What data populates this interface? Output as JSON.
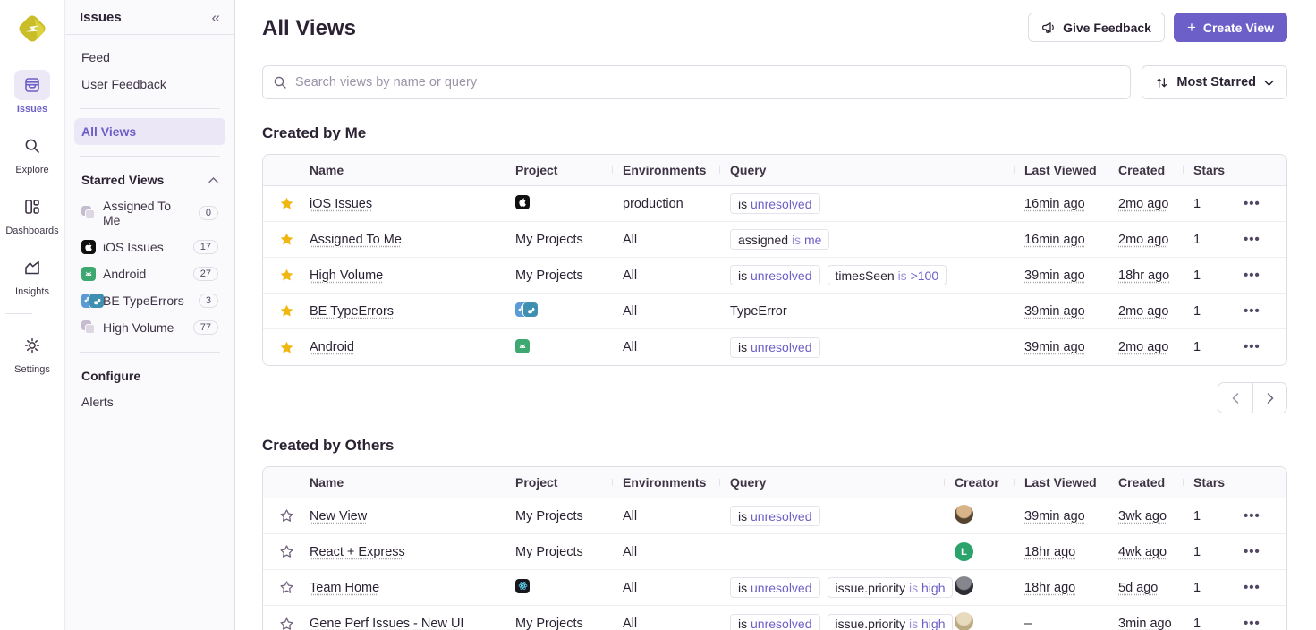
{
  "colors": {
    "accent": "#6C5FC7",
    "star_gold": "#F0B712",
    "border": "#E0DCE5",
    "text_dark": "#2B2233"
  },
  "rail": {
    "items": [
      {
        "label": "Issues",
        "icon": "issues",
        "active": true
      },
      {
        "label": "Explore",
        "icon": "explore",
        "active": false
      },
      {
        "label": "Dashboards",
        "icon": "dashboards",
        "active": false
      },
      {
        "label": "Insights",
        "icon": "insights",
        "active": false
      },
      {
        "label": "Settings",
        "icon": "settings",
        "active": false,
        "divider_before": true
      }
    ]
  },
  "sidebar": {
    "title": "Issues",
    "collapse_glyph": "«",
    "nav_items": [
      {
        "label": "Feed"
      },
      {
        "label": "User Feedback"
      }
    ],
    "all_views_label": "All Views",
    "starred_header": "Starred Views",
    "starred_items": [
      {
        "label": "Assigned To Me",
        "count": "0",
        "icon": "stack"
      },
      {
        "label": "iOS Issues",
        "count": "17",
        "icon": "apple"
      },
      {
        "label": "Android",
        "count": "27",
        "icon": "android"
      },
      {
        "label": "BE TypeErrors",
        "count": "3",
        "icon": "python-pair"
      },
      {
        "label": "High Volume",
        "count": "77",
        "icon": "stack"
      }
    ],
    "configure_header": "Configure",
    "configure_items": [
      {
        "label": "Alerts"
      }
    ]
  },
  "header": {
    "title": "All Views",
    "give_feedback_label": "Give Feedback",
    "create_view_label": "Create View",
    "create_view_plus": "+"
  },
  "toolbar": {
    "search_placeholder": "Search views by name or query",
    "sort_label": "Most Starred"
  },
  "created_by_me": {
    "heading": "Created by Me",
    "columns": [
      "Name",
      "Project",
      "Environments",
      "Query",
      "Last Viewed",
      "Created",
      "Stars"
    ],
    "rows": [
      {
        "starred": true,
        "name": "iOS Issues",
        "project": {
          "icons": [
            "apple"
          ]
        },
        "environments": "production",
        "query": [
          {
            "tokens": [
              {
                "t": "is",
                "c": "d"
              },
              {
                "t": "unresolved",
                "c": "p"
              }
            ]
          }
        ],
        "last_viewed": "16min ago",
        "created": "2mo ago",
        "stars": "1"
      },
      {
        "starred": true,
        "name": "Assigned To Me",
        "project": {
          "text": "My Projects"
        },
        "environments": "All",
        "query": [
          {
            "tokens": [
              {
                "t": "assigned",
                "c": "d"
              },
              {
                "t": "is",
                "c": "m"
              },
              {
                "t": "me",
                "c": "p"
              }
            ]
          }
        ],
        "last_viewed": "16min ago",
        "created": "2mo ago",
        "stars": "1"
      },
      {
        "starred": true,
        "name": "High Volume",
        "project": {
          "text": "My Projects"
        },
        "environments": "All",
        "query": [
          {
            "tokens": [
              {
                "t": "is",
                "c": "d"
              },
              {
                "t": "unresolved",
                "c": "p"
              }
            ]
          },
          {
            "tokens": [
              {
                "t": "timesSeen",
                "c": "d"
              },
              {
                "t": "is",
                "c": "m"
              },
              {
                "t": ">100",
                "c": "p"
              }
            ]
          }
        ],
        "last_viewed": "39min ago",
        "created": "18hr ago",
        "stars": "1"
      },
      {
        "starred": true,
        "name": "BE TypeErrors",
        "project": {
          "icons": [
            "python-a",
            "python-b"
          ]
        },
        "environments": "All",
        "query": [
          {
            "plain": "TypeError"
          }
        ],
        "last_viewed": "39min ago",
        "created": "2mo ago",
        "stars": "1"
      },
      {
        "starred": true,
        "name": "Android",
        "project": {
          "icons": [
            "android"
          ]
        },
        "environments": "All",
        "query": [
          {
            "tokens": [
              {
                "t": "is",
                "c": "d"
              },
              {
                "t": "unresolved",
                "c": "p"
              }
            ]
          }
        ],
        "last_viewed": "39min ago",
        "created": "2mo ago",
        "stars": "1"
      }
    ]
  },
  "created_by_others": {
    "heading": "Created by Others",
    "columns": [
      "Name",
      "Project",
      "Environments",
      "Query",
      "Creator",
      "Last Viewed",
      "Created",
      "Stars"
    ],
    "rows": [
      {
        "starred": false,
        "name": "New View",
        "project": {
          "text": "My Projects"
        },
        "environments": "All",
        "query": [
          {
            "tokens": [
              {
                "t": "is",
                "c": "d"
              },
              {
                "t": "unresolved",
                "c": "p"
              }
            ]
          }
        ],
        "creator": {
          "kind": "photo",
          "c1": "#d8b488",
          "c2": "#564430"
        },
        "last_viewed": "39min ago",
        "created": "3wk ago",
        "stars": "1"
      },
      {
        "starred": false,
        "name": "React + Express",
        "project": {
          "text": "My Projects"
        },
        "environments": "All",
        "query": [],
        "creator": {
          "kind": "letter",
          "letter": "L",
          "bg": "#2BA36B"
        },
        "last_viewed": "18hr ago",
        "created": "4wk ago",
        "stars": "1"
      },
      {
        "starred": false,
        "name": "Team Home",
        "project": {
          "icons": [
            "react"
          ]
        },
        "environments": "All",
        "query": [
          {
            "tokens": [
              {
                "t": "is",
                "c": "d"
              },
              {
                "t": "unresolved",
                "c": "p"
              }
            ]
          },
          {
            "tokens": [
              {
                "t": "issue.priority",
                "c": "d"
              },
              {
                "t": "is",
                "c": "m"
              },
              {
                "t": "high",
                "c": "p"
              }
            ]
          }
        ],
        "creator": {
          "kind": "photo",
          "c1": "#86868e",
          "c2": "#2c2c32"
        },
        "last_viewed": "18hr ago",
        "created": "5d ago",
        "stars": "1"
      },
      {
        "starred": false,
        "name": "Gene Perf Issues - New UI",
        "project": {
          "text": "My Projects"
        },
        "environments": "All",
        "query": [
          {
            "tokens": [
              {
                "t": "is",
                "c": "d"
              },
              {
                "t": "unresolved",
                "c": "p"
              }
            ]
          },
          {
            "tokens": [
              {
                "t": "issue.priority",
                "c": "d"
              },
              {
                "t": "is",
                "c": "m"
              },
              {
                "t": "high",
                "c": "p"
              }
            ]
          }
        ],
        "creator": {
          "kind": "photo",
          "c1": "#e7dabd",
          "c2": "#bcaa82"
        },
        "last_viewed": "–",
        "created": "3min ago",
        "stars": "1"
      }
    ]
  },
  "pagination": {
    "prev_glyph": "‹",
    "next_glyph": "›"
  }
}
